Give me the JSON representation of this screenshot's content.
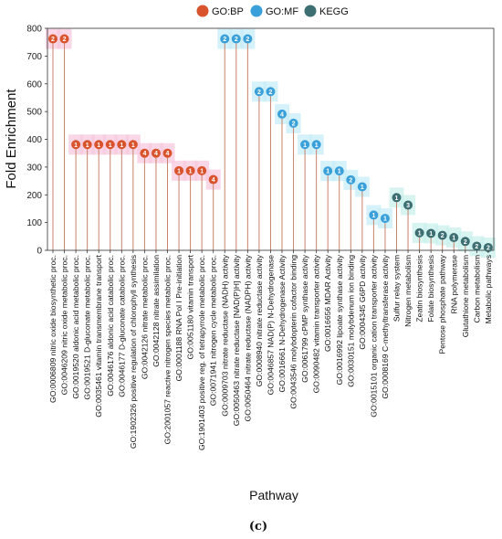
{
  "chart_data": {
    "type": "lollipop",
    "xlabel": "Pathway",
    "ylabel": "Fold Enrichment",
    "ylim": [
      0,
      800
    ],
    "yticks": [
      0,
      100,
      200,
      300,
      400,
      500,
      600,
      700,
      800
    ],
    "legend_position": "top",
    "legend": [
      {
        "key": "BP",
        "label": "GO:BP",
        "color": "#d9532c"
      },
      {
        "key": "MF",
        "label": "GO:MF",
        "color": "#3aa0d9"
      },
      {
        "key": "KEGG",
        "label": "KEGG",
        "color": "#3d6e72"
      }
    ],
    "panel_label": "(c)",
    "points": [
      {
        "label": "GO:0006809 nitric oxide biosynthetic proc.",
        "value": 762,
        "count": "2",
        "category": "BP"
      },
      {
        "label": "GO:0046209 nitric oxide metabolic proc.",
        "value": 762,
        "count": "2",
        "category": "BP"
      },
      {
        "label": "GO:0019520 aldonic acid metabolic proc.",
        "value": 381,
        "count": "1",
        "category": "BP"
      },
      {
        "label": "GO:0019521 D-gluconate metabolic proc.",
        "value": 381,
        "count": "1",
        "category": "BP"
      },
      {
        "label": "GO:0035461 vitamin transmembrane transport",
        "value": 381,
        "count": "1",
        "category": "BP"
      },
      {
        "label": "GO:0046176 aldonic acid catabolic proc.",
        "value": 381,
        "count": "1",
        "category": "BP"
      },
      {
        "label": "GO:0046177 D-gluconate catabolic proc.",
        "value": 381,
        "count": "1",
        "category": "BP"
      },
      {
        "label": "GO:1902326 positive regulation of chlorophyll synthesis",
        "value": 381,
        "count": "1",
        "category": "BP"
      },
      {
        "label": "GO:0042126 nitrate metabolic proc.",
        "value": 350,
        "count": "4",
        "category": "BP"
      },
      {
        "label": "GO:0042128 nitrate assimilation",
        "value": 350,
        "count": "4",
        "category": "BP"
      },
      {
        "label": "GO:2001057 reactive nitrogen species metabolic proc.",
        "value": 350,
        "count": "4",
        "category": "BP"
      },
      {
        "label": "GO:0001188 RNA Pol I Pre-initiation",
        "value": 287,
        "count": "1",
        "category": "BP"
      },
      {
        "label": "GO:0051180 vitamin transport",
        "value": 287,
        "count": "1",
        "category": "BP"
      },
      {
        "label": "GO:1901403 positive reg. of tetrapyrrole metabolic proc.",
        "value": 287,
        "count": "1",
        "category": "BP"
      },
      {
        "label": "GO:0071941 nitrogen cycle metabolic proc.",
        "value": 255,
        "count": "4",
        "category": "BP"
      },
      {
        "label": "GO:0009703 nitrate reductase (NADH) activity",
        "value": 762,
        "count": "2",
        "category": "MF"
      },
      {
        "label": "GO:0050463 nitrate reductase [NAD(P)H] activity",
        "value": 762,
        "count": "2",
        "category": "MF"
      },
      {
        "label": "GO:0050464 nitrate reductase (NADPH) activity",
        "value": 762,
        "count": "2",
        "category": "MF"
      },
      {
        "label": "GO:0008940 nitrate reductase activity",
        "value": 572,
        "count": "2",
        "category": "MF"
      },
      {
        "label": "GO:0046857 NAD(P) N-Dehydrogenase",
        "value": 572,
        "count": "2",
        "category": "MF"
      },
      {
        "label": "GO:0016661 N-Dehydrogenase Activity",
        "value": 491,
        "count": "4",
        "category": "MF"
      },
      {
        "label": "GO:0043546 molybdopterin cofactor binding",
        "value": 458,
        "count": "2",
        "category": "MF"
      },
      {
        "label": "GO:0061799 cPMP synthase activity",
        "value": 381,
        "count": "1",
        "category": "MF"
      },
      {
        "label": "GO:0090482 vitamin transporter activity",
        "value": 381,
        "count": "1",
        "category": "MF"
      },
      {
        "label": "GO:0016656 MDAR Activity",
        "value": 286,
        "count": "1",
        "category": "MF"
      },
      {
        "label": "GO:0016992 lipoate synthase activity",
        "value": 286,
        "count": "1",
        "category": "MF"
      },
      {
        "label": "GO:0030151 molybdenum ion binding",
        "value": 254,
        "count": "2",
        "category": "MF"
      },
      {
        "label": "GO:0004345 G6PD activity",
        "value": 229,
        "count": "1",
        "category": "MF"
      },
      {
        "label": "GO:0015101 organic cation transporter activity",
        "value": 127,
        "count": "1",
        "category": "MF"
      },
      {
        "label": "GO:0008169 C-methyltransferase activity",
        "value": 115,
        "count": "1",
        "category": "MF"
      },
      {
        "label": "Sulfur relay system",
        "value": 190,
        "count": "1",
        "category": "KEGG"
      },
      {
        "label": "Nitrogen metabolism",
        "value": 163,
        "count": "3",
        "category": "KEGG"
      },
      {
        "label": "Zeatin biosynthesis",
        "value": 63,
        "count": "1",
        "category": "KEGG"
      },
      {
        "label": "Folate biosynthesis",
        "value": 61,
        "count": "1",
        "category": "KEGG"
      },
      {
        "label": "Pentose phosphate pathway",
        "value": 54,
        "count": "2",
        "category": "KEGG"
      },
      {
        "label": "RNA polymerase",
        "value": 46,
        "count": "1",
        "category": "KEGG"
      },
      {
        "label": "Glutathione metabolism",
        "value": 32,
        "count": "2",
        "category": "KEGG"
      },
      {
        "label": "Carbon metabolism",
        "value": 15,
        "count": "2",
        "category": "KEGG"
      },
      {
        "label": "Metabolic pathways",
        "value": 10,
        "count": "2",
        "category": "KEGG"
      }
    ]
  }
}
